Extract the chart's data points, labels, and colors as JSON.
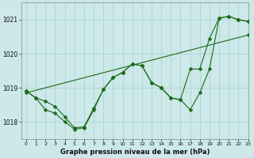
{
  "xlabel": "Graphe pression niveau de la mer (hPa)",
  "ylim": [
    1017.5,
    1021.5
  ],
  "xlim": [
    -0.5,
    23
  ],
  "yticks": [
    1018,
    1019,
    1020,
    1021
  ],
  "xticks": [
    0,
    1,
    2,
    3,
    4,
    5,
    6,
    7,
    8,
    9,
    10,
    11,
    12,
    13,
    14,
    15,
    16,
    17,
    18,
    19,
    20,
    21,
    22,
    23
  ],
  "background_color": "#cce8e8",
  "grid_color": "#aacfcf",
  "line_color": "#1a6b1a",
  "y_zigzag": [
    1018.9,
    1018.7,
    1018.35,
    1018.25,
    1018.0,
    1017.78,
    1017.82,
    1018.35,
    1018.95,
    1019.3,
    1019.45,
    1019.7,
    1019.65,
    1019.15,
    1019.0,
    1018.7,
    1018.65,
    1018.35,
    1018.85,
    1019.55,
    1021.05,
    1021.1,
    1021.0,
    1020.95
  ],
  "y_upper": [
    1018.9,
    1018.7,
    1018.6,
    1018.45,
    1018.15,
    1017.82,
    1017.85,
    1018.4,
    1018.95,
    1019.3,
    1019.45,
    1019.7,
    1019.65,
    1019.15,
    1019.0,
    1018.7,
    1018.65,
    1019.55,
    1019.55,
    1020.45,
    1021.05,
    1021.1,
    1021.0,
    1020.95
  ],
  "y_trend_x": [
    0,
    23
  ],
  "y_trend_y": [
    1018.85,
    1020.55
  ],
  "marker_size": 2.5,
  "linewidth": 0.8
}
